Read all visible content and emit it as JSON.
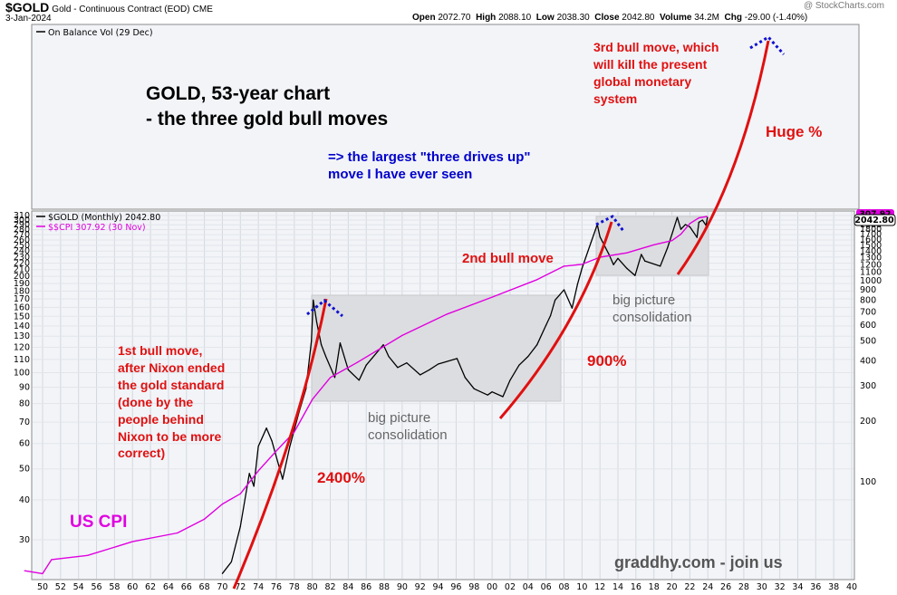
{
  "header": {
    "symbol": "$GOLD",
    "name": "Gold - Continuous Contract (EOD)",
    "exchange": "CME",
    "watermark": "@ StockCharts.com",
    "date": "3-Jan-2024",
    "open_label": "Open",
    "open": "2072.70",
    "high_label": "High",
    "high": "2088.10",
    "low_label": "Low",
    "low": "2038.30",
    "close_label": "Close",
    "close": "2042.80",
    "volume_label": "Volume",
    "volume": "34.2M",
    "chg_label": "Chg",
    "chg": "-29.00 (-1.40%)"
  },
  "top_panel": {
    "legend": "On Balance Vol (29 Dec)"
  },
  "main_panel": {
    "legend_gold": "$GOLD (Monthly) 2042.80",
    "legend_cpi": "$$CPI 307.92 (30 Nov)",
    "last_price_tag": "2042.80",
    "last_cpi_tag": "307.92"
  },
  "annotations": {
    "title_line1": "GOLD, 53-year chart",
    "title_line2": "- the three gold bull moves",
    "three_drives_line1": "=> the largest \"three drives up\"",
    "three_drives_line2": "move I have ever seen",
    "third_bull": [
      "3rd bull move, which",
      "will kill the present",
      "global monetary",
      "system"
    ],
    "huge": "Huge %",
    "second_bull": "2nd bull move",
    "first_bull": [
      "1st bull move,",
      "after Nixon ended",
      "the gold standard",
      "(done by the",
      "people behind",
      "Nixon to be more",
      "correct)"
    ],
    "pct_2400": "2400%",
    "pct_900": "900%",
    "consolidation_1": [
      "big picture",
      "consolidation"
    ],
    "consolidation_2": [
      "big picture",
      "consolidation"
    ],
    "us_cpi": "US CPI",
    "promo": "graddhy.com - join us"
  },
  "colors": {
    "gold_price": "#000000",
    "cpi": "#e000e0",
    "bull_arc": "#e01010",
    "drive_marker": "#1010d0",
    "annotation_red": "#e01010",
    "annotation_blue": "#0000cc",
    "consolidation_box": "#dcdde0",
    "panel_bg": "#f2f4f8"
  },
  "chart_data": {
    "type": "line",
    "title": "",
    "xlabel": "",
    "ylabel": "",
    "x_axis_labels": [
      "50",
      "52",
      "54",
      "56",
      "58",
      "60",
      "62",
      "64",
      "66",
      "68",
      "70",
      "72",
      "74",
      "76",
      "78",
      "80",
      "82",
      "84",
      "86",
      "88",
      "90",
      "92",
      "94",
      "96",
      "98",
      "00",
      "02",
      "04",
      "06",
      "08",
      "10",
      "12",
      "14",
      "16",
      "18",
      "20",
      "22",
      "24",
      "26",
      "28",
      "30",
      "32",
      "34",
      "36",
      "38",
      "40"
    ],
    "y_axis_left_cpi": {
      "scale": "log",
      "ticks": [
        30,
        40,
        50,
        60,
        70,
        80,
        90,
        100,
        110,
        120,
        130,
        140,
        150,
        160,
        170,
        180,
        190,
        200,
        210,
        220,
        230,
        240,
        250,
        260,
        270,
        280,
        290,
        300,
        310
      ]
    },
    "y_axis_right_gold": {
      "scale": "log",
      "ticks": [
        100,
        200,
        300,
        400,
        500,
        600,
        700,
        800,
        900,
        1000,
        1100,
        1200,
        1300,
        1400,
        1500,
        1600,
        1700,
        1800,
        1900,
        2000
      ]
    },
    "series": [
      {
        "name": "$GOLD (Monthly)",
        "axis": "right",
        "x": [
          1970,
          1971,
          1972,
          1973,
          1973.5,
          1974,
          1974.9,
          1975.5,
          1976.7,
          1977.5,
          1978.5,
          1979.3,
          1979.9,
          1980.1,
          1980.5,
          1981,
          1981.5,
          1982.5,
          1983.1,
          1984,
          1985.2,
          1986,
          1987.9,
          1988.5,
          1989.5,
          1990.5,
          1992,
          1993,
          1994,
          1996.1,
          1997,
          1998,
          1999.5,
          2000,
          2001.2,
          2002,
          2003,
          2004,
          2005,
          2006,
          2006.5,
          2007,
          2008,
          2008.9,
          2009.5,
          2010,
          2011,
          2011.7,
          2012,
          2013,
          2013.5,
          2014,
          2015,
          2015.9,
          2016.6,
          2017,
          2018.7,
          2019.5,
          2020,
          2020.6,
          2021,
          2021.5,
          2022,
          2022.8,
          2023,
          2023.4,
          2023.8,
          2023.95
        ],
        "values": [
          35,
          40,
          60,
          110,
          95,
          150,
          185,
          160,
          103,
          150,
          220,
          290,
          500,
          800,
          620,
          480,
          420,
          330,
          490,
          360,
          320,
          380,
          480,
          420,
          370,
          390,
          340,
          360,
          385,
          410,
          330,
          290,
          270,
          280,
          265,
          320,
          380,
          420,
          480,
          600,
          670,
          800,
          900,
          730,
          960,
          1150,
          1550,
          1900,
          1650,
          1350,
          1200,
          1290,
          1150,
          1060,
          1350,
          1250,
          1180,
          1450,
          1700,
          2060,
          1800,
          1900,
          1850,
          1640,
          1950,
          2000,
          1880,
          2060
        ]
      },
      {
        "name": "$$CPI",
        "axis": "left",
        "x": [
          1948,
          1950,
          1951,
          1955,
          1960,
          1965,
          1968,
          1970,
          1972,
          1974,
          1976,
          1978,
          1980,
          1982,
          1985,
          1990,
          1995,
          2000,
          2005,
          2008,
          2010,
          2012,
          2015,
          2018,
          2020,
          2021,
          2022,
          2023,
          2023.9
        ],
        "values": [
          24,
          23.5,
          26,
          26.8,
          29.6,
          31.5,
          34.8,
          38.8,
          41.8,
          49.3,
          56.9,
          65.2,
          82.4,
          96.5,
          107.6,
          130.7,
          152.4,
          172.2,
          195.3,
          215.3,
          218.1,
          229.6,
          237,
          251.1,
          258.8,
          271,
          292.7,
          304.7,
          307.92
        ]
      }
    ],
    "grid": true,
    "legend_position": "top-left"
  }
}
